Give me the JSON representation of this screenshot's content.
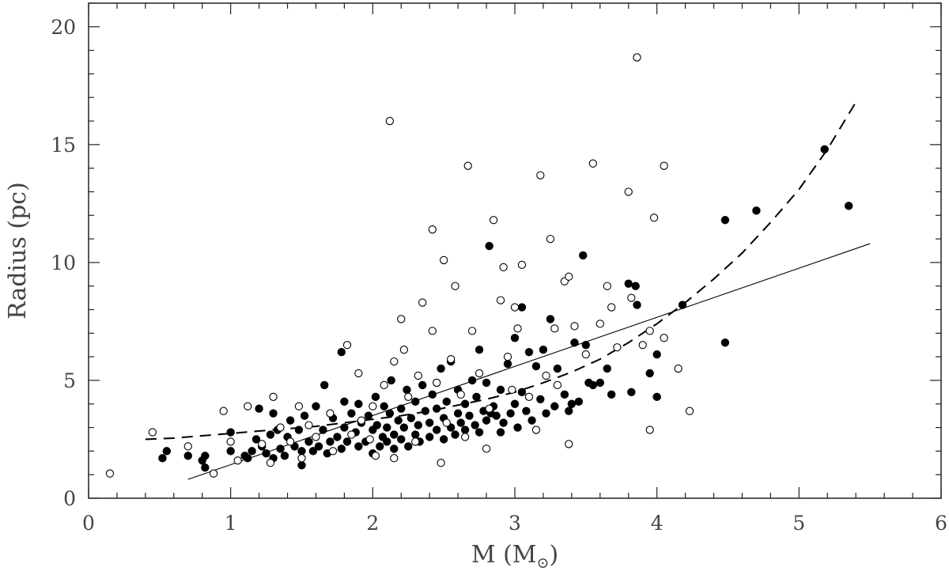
{
  "chart_data": {
    "type": "scatter",
    "xlabel": "M (M",
    "xlabel_sub": "⊙",
    "xlabel_close": ")",
    "ylabel": "Radius (pc)",
    "xlim": [
      0,
      6
    ],
    "ylim": [
      0,
      21
    ],
    "xticks": [
      "0",
      "1",
      "2",
      "3",
      "4",
      "5",
      "6"
    ],
    "yticks": [
      "0",
      "5",
      "10",
      "15",
      "20"
    ],
    "grid": false,
    "colors": {
      "filled": "#000000",
      "open": "#000000",
      "frame": "#222222"
    },
    "series": [
      {
        "marker": "filled-circle",
        "points": [
          [
            0.52,
            1.7
          ],
          [
            0.55,
            2.0
          ],
          [
            0.7,
            1.8
          ],
          [
            0.8,
            1.6
          ],
          [
            0.82,
            1.8
          ],
          [
            0.82,
            1.3
          ],
          [
            1.0,
            2.0
          ],
          [
            1.0,
            2.8
          ],
          [
            1.1,
            1.8
          ],
          [
            1.12,
            1.7
          ],
          [
            1.15,
            2.0
          ],
          [
            1.18,
            2.5
          ],
          [
            1.2,
            3.8
          ],
          [
            1.22,
            2.2
          ],
          [
            1.25,
            1.9
          ],
          [
            1.28,
            2.7
          ],
          [
            1.3,
            3.6
          ],
          [
            1.3,
            1.7
          ],
          [
            1.33,
            2.9
          ],
          [
            1.35,
            2.1
          ],
          [
            1.38,
            1.8
          ],
          [
            1.4,
            2.6
          ],
          [
            1.42,
            3.3
          ],
          [
            1.45,
            2.2
          ],
          [
            1.48,
            2.9
          ],
          [
            1.5,
            1.4
          ],
          [
            1.5,
            2.0
          ],
          [
            1.52,
            3.5
          ],
          [
            1.55,
            2.4
          ],
          [
            1.58,
            2.0
          ],
          [
            1.6,
            3.9
          ],
          [
            1.62,
            2.2
          ],
          [
            1.65,
            2.9
          ],
          [
            1.66,
            4.8
          ],
          [
            1.68,
            1.9
          ],
          [
            1.7,
            2.4
          ],
          [
            1.72,
            3.4
          ],
          [
            1.75,
            2.6
          ],
          [
            1.78,
            2.1
          ],
          [
            1.78,
            6.2
          ],
          [
            1.8,
            3.0
          ],
          [
            1.8,
            4.1
          ],
          [
            1.82,
            2.4
          ],
          [
            1.85,
            3.6
          ],
          [
            1.88,
            2.8
          ],
          [
            1.9,
            2.2
          ],
          [
            1.9,
            4.0
          ],
          [
            1.92,
            3.2
          ],
          [
            1.95,
            2.4
          ],
          [
            1.97,
            3.5
          ],
          [
            2.0,
            2.9
          ],
          [
            2.0,
            1.9
          ],
          [
            2.02,
            4.3
          ],
          [
            2.03,
            3.1
          ],
          [
            2.05,
            2.2
          ],
          [
            2.07,
            2.6
          ],
          [
            2.08,
            3.9
          ],
          [
            2.1,
            2.4
          ],
          [
            2.1,
            3.0
          ],
          [
            2.12,
            3.6
          ],
          [
            2.13,
            5.0
          ],
          [
            2.15,
            2.1
          ],
          [
            2.15,
            2.7
          ],
          [
            2.18,
            3.3
          ],
          [
            2.2,
            3.8
          ],
          [
            2.2,
            2.5
          ],
          [
            2.22,
            3.0
          ],
          [
            2.24,
            4.6
          ],
          [
            2.25,
            2.2
          ],
          [
            2.27,
            3.4
          ],
          [
            2.3,
            2.7
          ],
          [
            2.3,
            4.1
          ],
          [
            2.32,
            3.1
          ],
          [
            2.33,
            2.4
          ],
          [
            2.35,
            4.8
          ],
          [
            2.37,
            3.7
          ],
          [
            2.4,
            2.6
          ],
          [
            2.4,
            3.2
          ],
          [
            2.42,
            4.4
          ],
          [
            2.45,
            2.9
          ],
          [
            2.45,
            3.8
          ],
          [
            2.48,
            5.5
          ],
          [
            2.5,
            2.5
          ],
          [
            2.5,
            3.4
          ],
          [
            2.52,
            4.1
          ],
          [
            2.55,
            3.0
          ],
          [
            2.55,
            5.8
          ],
          [
            2.58,
            2.7
          ],
          [
            2.6,
            3.6
          ],
          [
            2.6,
            4.6
          ],
          [
            2.62,
            3.2
          ],
          [
            2.65,
            2.9
          ],
          [
            2.65,
            4.0
          ],
          [
            2.68,
            3.5
          ],
          [
            2.7,
            5.0
          ],
          [
            2.72,
            3.1
          ],
          [
            2.73,
            4.3
          ],
          [
            2.75,
            2.8
          ],
          [
            2.75,
            6.3
          ],
          [
            2.78,
            3.7
          ],
          [
            2.8,
            4.9
          ],
          [
            2.8,
            3.3
          ],
          [
            2.82,
            10.7
          ],
          [
            2.83,
            3.6
          ],
          [
            2.85,
            3.9
          ],
          [
            2.87,
            3.5
          ],
          [
            2.9,
            2.8
          ],
          [
            2.9,
            4.6
          ],
          [
            2.92,
            3.2
          ],
          [
            2.95,
            5.7
          ],
          [
            2.97,
            3.6
          ],
          [
            3.0,
            4.0
          ],
          [
            3.0,
            6.8
          ],
          [
            3.02,
            3.0
          ],
          [
            3.05,
            4.5
          ],
          [
            3.05,
            8.1
          ],
          [
            3.08,
            3.7
          ],
          [
            3.1,
            6.2
          ],
          [
            3.12,
            3.3
          ],
          [
            3.15,
            5.6
          ],
          [
            3.18,
            4.2
          ],
          [
            3.2,
            6.3
          ],
          [
            3.22,
            3.6
          ],
          [
            3.25,
            7.6
          ],
          [
            3.28,
            3.9
          ],
          [
            3.3,
            5.5
          ],
          [
            3.35,
            4.4
          ],
          [
            3.38,
            3.7
          ],
          [
            3.4,
            4.0
          ],
          [
            3.42,
            6.6
          ],
          [
            3.45,
            4.1
          ],
          [
            3.48,
            10.3
          ],
          [
            3.5,
            6.5
          ],
          [
            3.52,
            4.9
          ],
          [
            3.55,
            4.8
          ],
          [
            3.6,
            4.9
          ],
          [
            3.65,
            5.5
          ],
          [
            3.68,
            4.4
          ],
          [
            3.8,
            9.1
          ],
          [
            3.82,
            4.5
          ],
          [
            3.85,
            9.0
          ],
          [
            3.86,
            8.2
          ],
          [
            3.95,
            5.3
          ],
          [
            4.0,
            6.1
          ],
          [
            4.0,
            4.3
          ],
          [
            4.18,
            8.2
          ],
          [
            4.48,
            11.8
          ],
          [
            4.48,
            6.6
          ],
          [
            4.7,
            12.2
          ],
          [
            5.18,
            14.8
          ],
          [
            5.35,
            12.4
          ]
        ]
      },
      {
        "marker": "open-circle",
        "points": [
          [
            0.15,
            1.05
          ],
          [
            0.45,
            2.8
          ],
          [
            0.7,
            2.2
          ],
          [
            0.88,
            1.05
          ],
          [
            0.95,
            3.7
          ],
          [
            1.0,
            2.4
          ],
          [
            1.05,
            1.6
          ],
          [
            1.12,
            3.9
          ],
          [
            1.22,
            2.3
          ],
          [
            1.28,
            1.5
          ],
          [
            1.3,
            4.3
          ],
          [
            1.35,
            3.0
          ],
          [
            1.42,
            2.4
          ],
          [
            1.48,
            3.9
          ],
          [
            1.5,
            1.7
          ],
          [
            1.55,
            3.1
          ],
          [
            1.6,
            2.6
          ],
          [
            1.7,
            3.6
          ],
          [
            1.72,
            2.0
          ],
          [
            1.82,
            6.5
          ],
          [
            1.85,
            2.7
          ],
          [
            1.9,
            5.3
          ],
          [
            1.92,
            3.3
          ],
          [
            1.98,
            2.5
          ],
          [
            2.0,
            3.9
          ],
          [
            2.02,
            1.8
          ],
          [
            2.08,
            4.8
          ],
          [
            2.12,
            16.0
          ],
          [
            2.15,
            5.8
          ],
          [
            2.15,
            1.7
          ],
          [
            2.2,
            7.6
          ],
          [
            2.22,
            6.3
          ],
          [
            2.25,
            4.3
          ],
          [
            2.3,
            2.4
          ],
          [
            2.32,
            5.2
          ],
          [
            2.35,
            8.3
          ],
          [
            2.42,
            11.4
          ],
          [
            2.42,
            7.1
          ],
          [
            2.45,
            4.9
          ],
          [
            2.48,
            1.5
          ],
          [
            2.5,
            10.1
          ],
          [
            2.52,
            3.2
          ],
          [
            2.55,
            5.9
          ],
          [
            2.58,
            9.0
          ],
          [
            2.62,
            4.4
          ],
          [
            2.65,
            2.6
          ],
          [
            2.67,
            14.1
          ],
          [
            2.7,
            7.1
          ],
          [
            2.75,
            5.3
          ],
          [
            2.8,
            2.1
          ],
          [
            2.82,
            3.8
          ],
          [
            2.85,
            11.8
          ],
          [
            2.9,
            8.4
          ],
          [
            2.92,
            9.8
          ],
          [
            2.95,
            6.0
          ],
          [
            2.98,
            4.6
          ],
          [
            3.0,
            8.1
          ],
          [
            3.02,
            7.2
          ],
          [
            3.05,
            9.9
          ],
          [
            3.1,
            4.3
          ],
          [
            3.15,
            2.9
          ],
          [
            3.18,
            13.7
          ],
          [
            3.22,
            5.2
          ],
          [
            3.25,
            11.0
          ],
          [
            3.28,
            7.2
          ],
          [
            3.3,
            4.8
          ],
          [
            3.35,
            9.2
          ],
          [
            3.38,
            9.4
          ],
          [
            3.38,
            2.3
          ],
          [
            3.42,
            7.3
          ],
          [
            3.5,
            6.1
          ],
          [
            3.55,
            14.2
          ],
          [
            3.6,
            7.4
          ],
          [
            3.65,
            9.0
          ],
          [
            3.68,
            8.1
          ],
          [
            3.72,
            6.4
          ],
          [
            3.8,
            13.0
          ],
          [
            3.82,
            8.5
          ],
          [
            3.86,
            18.7
          ],
          [
            3.9,
            6.5
          ],
          [
            3.95,
            7.1
          ],
          [
            3.95,
            2.9
          ],
          [
            3.98,
            11.9
          ],
          [
            4.05,
            14.1
          ],
          [
            4.05,
            6.8
          ],
          [
            4.15,
            5.5
          ],
          [
            4.23,
            3.7
          ]
        ]
      }
    ],
    "fits": [
      {
        "style": "solid",
        "x": [
          0.7,
          5.5
        ],
        "y": [
          0.8,
          10.8
        ]
      },
      {
        "style": "dashed",
        "x": [
          0.4,
          0.6,
          0.8,
          1.0,
          1.2,
          1.4,
          1.6,
          1.8,
          2.0,
          2.2,
          2.4,
          2.6,
          2.8,
          3.0,
          3.2,
          3.4,
          3.6,
          3.8,
          4.0,
          4.2,
          4.4,
          4.6,
          4.8,
          5.0,
          5.2,
          5.4
        ],
        "y": [
          2.5,
          2.55,
          2.65,
          2.75,
          2.85,
          2.95,
          3.05,
          3.2,
          3.35,
          3.5,
          3.7,
          3.95,
          4.2,
          4.5,
          4.9,
          5.35,
          5.9,
          6.6,
          7.4,
          8.3,
          9.3,
          10.4,
          11.7,
          13.1,
          14.8,
          16.8
        ]
      }
    ]
  }
}
